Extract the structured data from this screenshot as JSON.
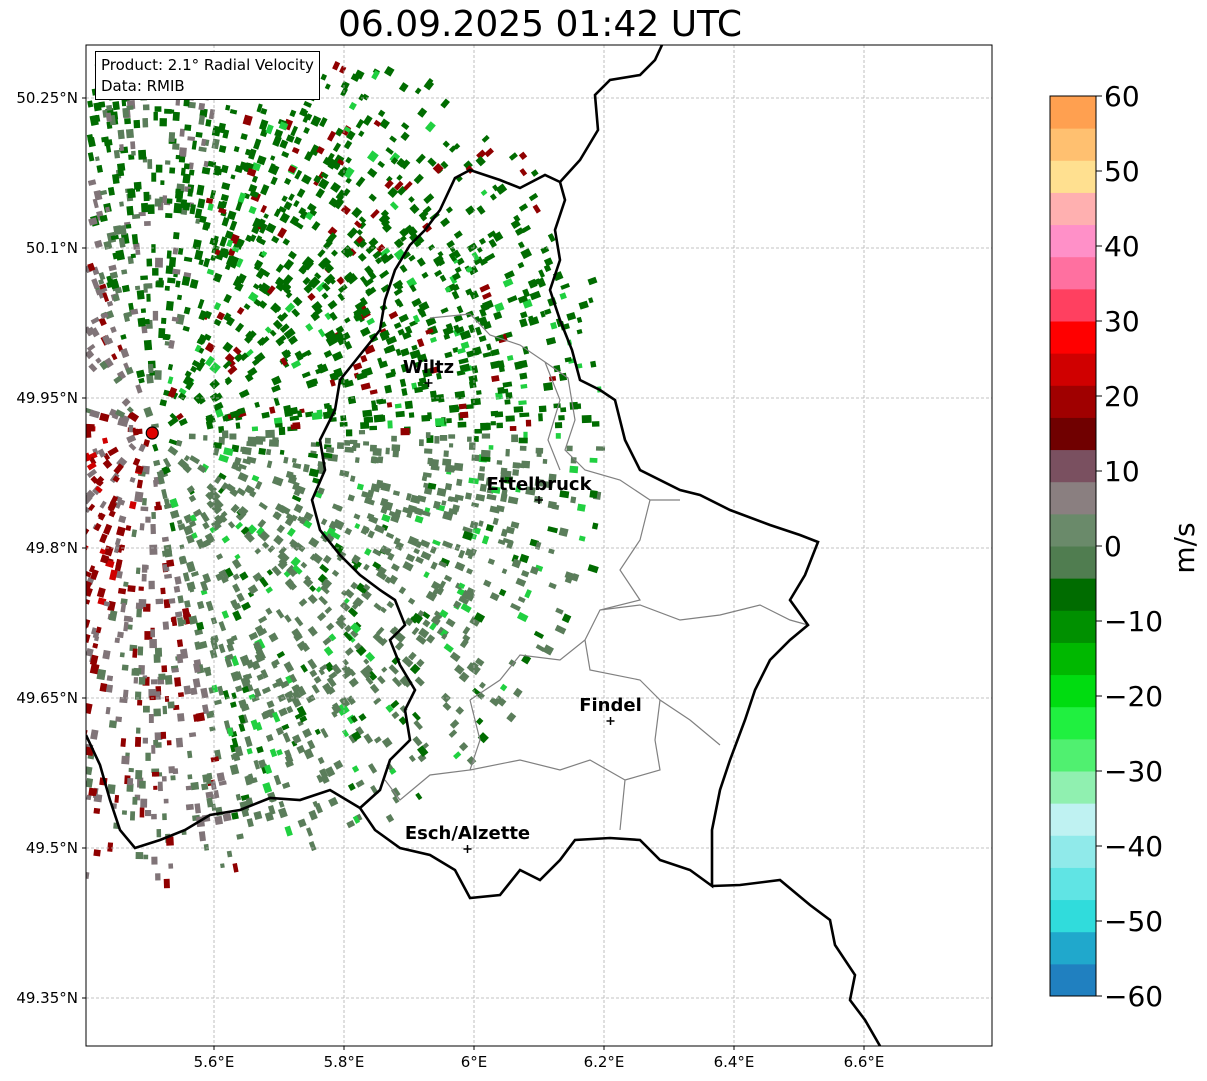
{
  "title": "06.09.2025 01:42 UTC",
  "info": {
    "product": "Product: 2.1° Radial Velocity",
    "data_source": "Data: RMIB"
  },
  "axes": {
    "lat_ticks": [
      "50.25°N",
      "50.1°N",
      "49.95°N",
      "49.8°N",
      "49.65°N",
      "49.5°N",
      "49.35°N"
    ],
    "lon_ticks": [
      "5.6°E",
      "5.8°E",
      "6°E",
      "6.2°E",
      "6.4°E",
      "6.6°E"
    ]
  },
  "cities": [
    {
      "name": "Wiltz",
      "lon": 5.93,
      "lat": 49.965
    },
    {
      "name": "Ettelbruck",
      "lon": 6.1,
      "lat": 49.848
    },
    {
      "name": "Findel",
      "lon": 6.21,
      "lat": 49.627
    },
    {
      "name": "Esch/Alzette",
      "lon": 5.99,
      "lat": 49.499
    }
  ],
  "radar_site": {
    "lon": 5.505,
    "lat": 49.915
  },
  "colorbar": {
    "label": "m/s",
    "vmin": -60,
    "vmax": 60,
    "ticks": [
      "60",
      "50",
      "40",
      "30",
      "20",
      "10",
      "0",
      "−10",
      "−20",
      "−30",
      "−40",
      "−50",
      "−60"
    ],
    "colors": [
      "#2080c0",
      "#20a8cc",
      "#30dcdc",
      "#60e4e4",
      "#90eaea",
      "#bff2f2",
      "#90f0b0",
      "#50f070",
      "#20f040",
      "#00dc10",
      "#00b800",
      "#009000",
      "#006c00",
      "#507d50",
      "#6a8a6a",
      "#8a7f80",
      "#7a5060",
      "#700000",
      "#a00000",
      "#d00000",
      "#ff0000",
      "#ff4060",
      "#ff70a0",
      "#ff90c8",
      "#ffb0b0",
      "#ffe090",
      "#ffc070",
      "#ffa050"
    ]
  },
  "colors": {
    "inbound_strong": "#006c00",
    "inbound_weak": "#5a7d5a",
    "near_zero": "#807478",
    "outbound": "#900000",
    "border": "#000000",
    "admin_border": "#808080"
  }
}
